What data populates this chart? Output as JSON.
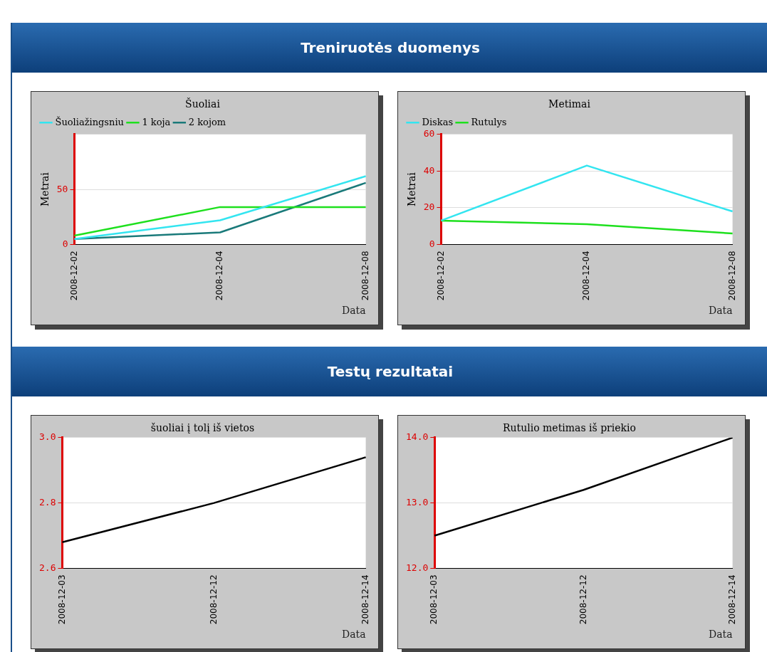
{
  "chart_data": [
    {
      "type": "line",
      "title": "Šuoliai",
      "annotations": [
        "Treniruotės duomenys"
      ],
      "xlabel": "Data",
      "ylabel": "Metrai",
      "categories": [
        "2008-12-02",
        "2008-12-04",
        "2008-12-08"
      ],
      "ylim": [
        0,
        100
      ],
      "yticks": [
        0,
        50
      ],
      "grid": "y",
      "legend": "top left",
      "marker": "none",
      "series": [
        {
          "name": "Šuoliažingsniu",
          "color": "#33e5f0",
          "values": [
            5,
            22,
            62
          ]
        },
        {
          "name": "1 koja",
          "color": "#1ee01e",
          "values": [
            8,
            34,
            34
          ]
        },
        {
          "name": "2 kojom",
          "color": "#1a7a7a",
          "values": [
            5,
            11,
            56
          ]
        }
      ]
    },
    {
      "type": "line",
      "title": "Metimai",
      "xlabel": "Data",
      "ylabel": "Metrai",
      "categories": [
        "2008-12-02",
        "2008-12-04",
        "2008-12-08"
      ],
      "ylim": [
        0,
        60
      ],
      "yticks": [
        0,
        20,
        40,
        60
      ],
      "grid": "y",
      "legend": "top left",
      "marker": "none",
      "series": [
        {
          "name": "Diskas",
          "color": "#33e5f0",
          "values": [
            13,
            43,
            18
          ]
        },
        {
          "name": "Rutulys",
          "color": "#1ee01e",
          "values": [
            13,
            11,
            6
          ]
        }
      ]
    },
    {
      "type": "line",
      "title": "šuoliai į tolį iš vietos",
      "annotations": [
        "Testų rezultatai"
      ],
      "xlabel": "Data",
      "categories": [
        "2008-12-03",
        "2008-12-12",
        "2008-12-14"
      ],
      "ylim": [
        2.6,
        3.0
      ],
      "yticks": [
        2.6,
        2.8,
        {
          "value": 3.0,
          "label": "3.0"
        }
      ],
      "grid": "y",
      "marker": "none",
      "series": [
        {
          "color": "#000000",
          "values": [
            2.68,
            2.8,
            2.94
          ]
        }
      ]
    },
    {
      "type": "line",
      "title": "Rutulio metimas iš priekio",
      "xlabel": "Data",
      "categories": [
        "2008-12-03",
        "2008-12-12",
        "2008-12-14"
      ],
      "ylim": [
        12,
        14
      ],
      "yticks": [
        {
          "value": 12,
          "label": "12.0"
        },
        {
          "value": 13,
          "label": "13.0"
        },
        {
          "value": 14,
          "label": "14.0"
        }
      ],
      "grid": "y",
      "marker": "none",
      "series": [
        {
          "color": "#000000",
          "values": [
            12.5,
            13.2,
            14.0
          ]
        }
      ]
    }
  ]
}
